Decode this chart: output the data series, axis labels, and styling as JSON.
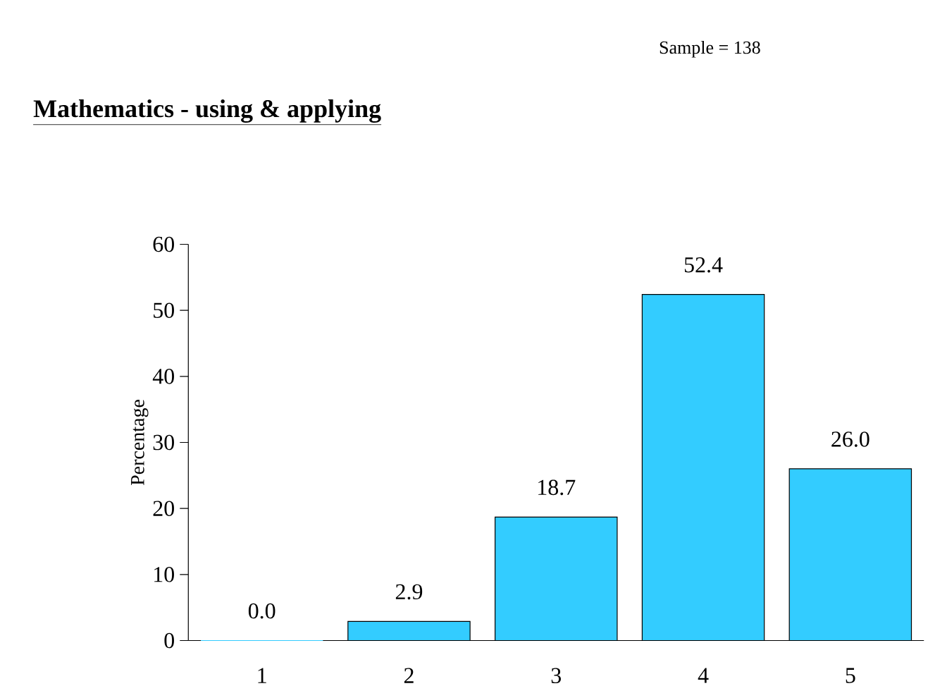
{
  "chart_data": {
    "type": "bar",
    "title": "Mathematics - using & applying",
    "annotations": [
      "Sample = 138"
    ],
    "ylabel": "Percentage",
    "categories": [
      "1",
      "2",
      "3",
      "4",
      "5"
    ],
    "values": [
      0.0,
      2.9,
      18.7,
      52.4,
      26.0
    ],
    "value_labels": [
      "0.0",
      "2.9",
      "18.7",
      "52.4",
      "26.0"
    ],
    "color": "#33ccff",
    "ylim": [
      0,
      60
    ],
    "yticks": [
      0,
      10,
      20,
      30,
      40,
      50,
      60
    ],
    "grid": false
  }
}
